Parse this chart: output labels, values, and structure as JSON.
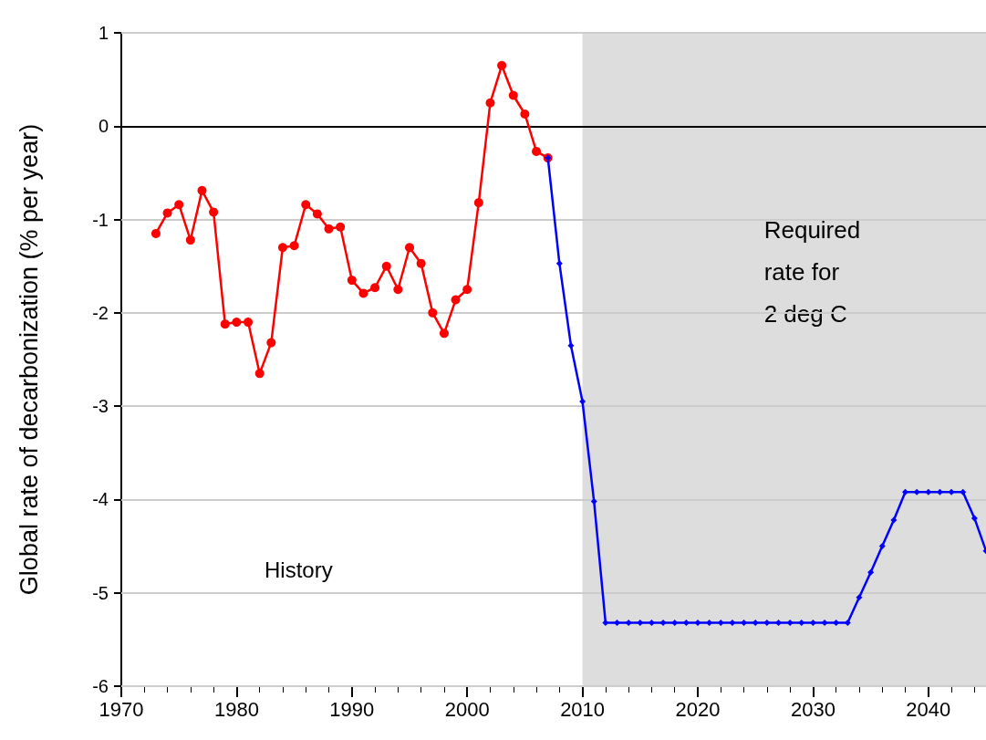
{
  "chart_data": {
    "type": "line",
    "ylabel": "Global rate of decarbonization (% per year)",
    "xlim": [
      1970,
      2045
    ],
    "xticks": [
      1970,
      1980,
      1990,
      2000,
      2010,
      2020,
      2030,
      2040
    ],
    "ylim": [
      -6,
      1
    ],
    "yticks": [
      -6,
      -5,
      -4,
      -3,
      -2,
      -1,
      0,
      1
    ],
    "grid": "y",
    "series": [
      {
        "color": "#ff0000",
        "marker": "circle",
        "x": [
          1973,
          1974,
          1975,
          1976,
          1977,
          1978,
          1979,
          1980,
          1981,
          1982,
          1983,
          1984,
          1985,
          1986,
          1987,
          1988,
          1989,
          1990,
          1991,
          1992,
          1993,
          1994,
          1995,
          1996,
          1997,
          1998,
          1999,
          2000,
          2001,
          2002,
          2003,
          2004,
          2005,
          2006,
          2007
        ],
        "values": [
          -1.15,
          -0.93,
          -0.84,
          -1.22,
          -0.69,
          -0.92,
          -2.12,
          -2.1,
          -2.1,
          -2.65,
          -2.32,
          -1.3,
          -1.28,
          -0.84,
          -0.94,
          -1.1,
          -1.08,
          -1.65,
          -1.79,
          -1.73,
          -1.5,
          -1.75,
          -1.3,
          -1.47,
          -2.0,
          -2.22,
          -1.86,
          -1.75,
          -0.82,
          0.25,
          0.65,
          0.33,
          0.13,
          -0.27,
          -0.34
        ]
      },
      {
        "color": "#0000ff",
        "marker": "diamond",
        "x": [
          2007,
          2008,
          2009,
          2010,
          2011,
          2012,
          2013,
          2014,
          2015,
          2016,
          2017,
          2018,
          2019,
          2020,
          2021,
          2022,
          2023,
          2024,
          2025,
          2026,
          2027,
          2028,
          2029,
          2030,
          2031,
          2032,
          2033,
          2034,
          2035,
          2036,
          2037,
          2038,
          2039,
          2040,
          2041,
          2042,
          2043,
          2044,
          2045
        ],
        "values": [
          -0.34,
          -1.47,
          -2.35,
          -2.95,
          -4.02,
          -5.32,
          -5.32,
          -5.32,
          -5.32,
          -5.32,
          -5.32,
          -5.32,
          -5.32,
          -5.32,
          -5.32,
          -5.32,
          -5.32,
          -5.32,
          -5.32,
          -5.32,
          -5.32,
          -5.32,
          -5.32,
          -5.32,
          -5.32,
          -5.32,
          -5.32,
          -5.05,
          -4.78,
          -4.5,
          -4.22,
          -3.92,
          -3.92,
          -3.92,
          -3.92,
          -3.92,
          -3.92,
          -4.2,
          -4.55
        ]
      }
    ],
    "ref_lines": [
      {
        "axis": "y",
        "value": 0,
        "color": "#000000"
      }
    ],
    "bands": [
      {
        "axis": "x",
        "from": 2010,
        "to": 2045,
        "label": "Required\nrate for\n2 deg C",
        "color": "#dddddd"
      }
    ],
    "annotations": [
      "History"
    ]
  }
}
